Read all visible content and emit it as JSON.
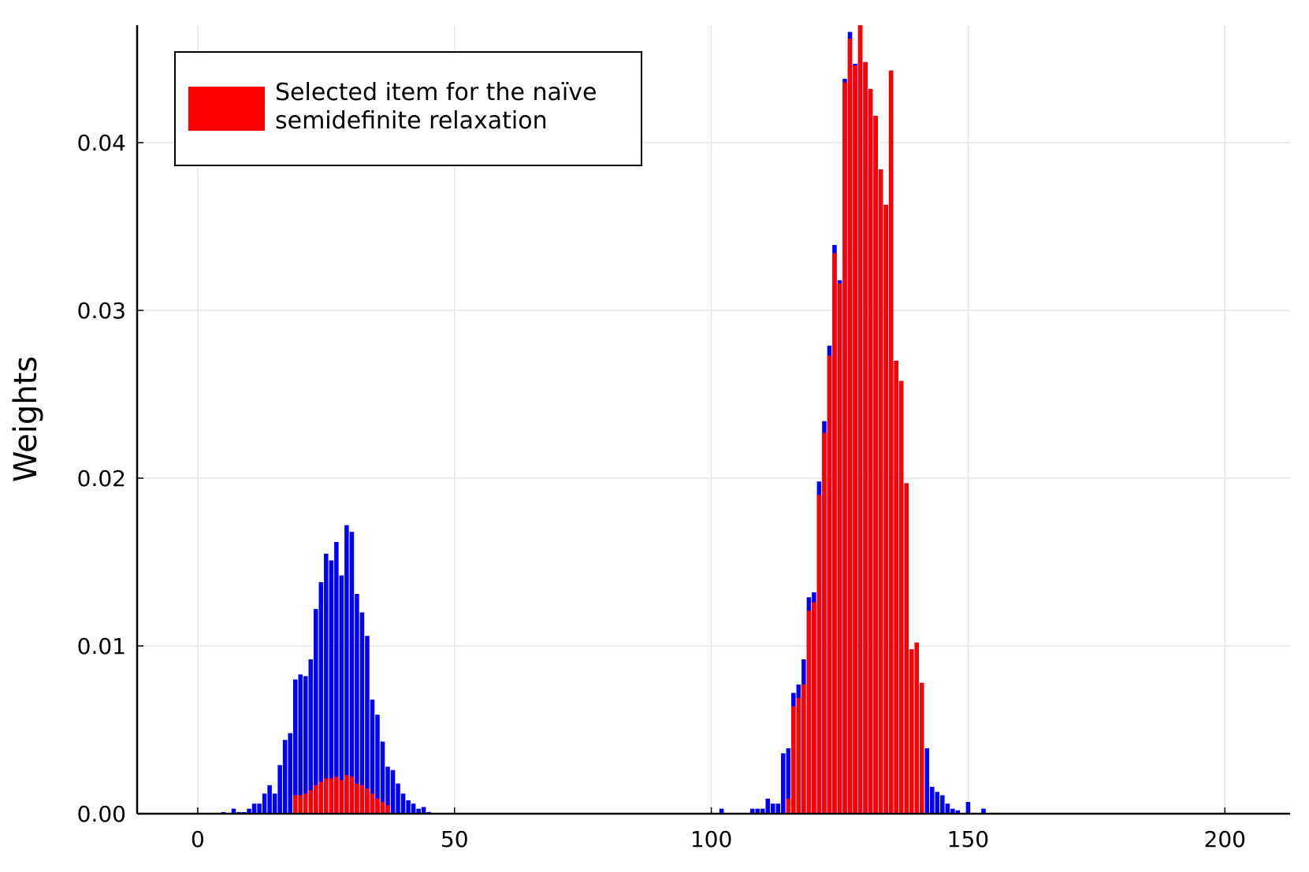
{
  "chart_data": {
    "type": "bar",
    "ylabel": "Weights",
    "xlim": [
      -11.8,
      212.7
    ],
    "ylim": [
      0,
      0.047
    ],
    "xticks": [
      0,
      50,
      100,
      150,
      200
    ],
    "yticks": [
      {
        "value": 0,
        "label": "0.00"
      },
      0.01,
      0.02,
      0.03,
      0.04
    ],
    "grid": true,
    "legend": "top-left",
    "series": [
      {
        "color": "#0000ff",
        "x": [
          5,
          7,
          8,
          9,
          10,
          11,
          12,
          13,
          14,
          15,
          16,
          17,
          18,
          19,
          20,
          21,
          22,
          23,
          24,
          25,
          26,
          27,
          28,
          29,
          30,
          31,
          32,
          33,
          34,
          35,
          36,
          37,
          38,
          39,
          40,
          41,
          42,
          43,
          44,
          45,
          102,
          108,
          109,
          110,
          111,
          112,
          113,
          114,
          115,
          116,
          117,
          118,
          119,
          120,
          121,
          122,
          123,
          124,
          125,
          126,
          127,
          128,
          129,
          130,
          131,
          132,
          133,
          134,
          135,
          136,
          137,
          138,
          139,
          140,
          141,
          142,
          143,
          144,
          145,
          146,
          147,
          148,
          150,
          153
        ],
        "values": [
          0.0001,
          0.0003,
          0.0001,
          0.0001,
          0.0003,
          0.0006,
          0.0006,
          0.0012,
          0.0017,
          0.0012,
          0.0029,
          0.0044,
          0.0048,
          0.008,
          0.0083,
          0.0082,
          0.0092,
          0.0122,
          0.0138,
          0.0155,
          0.0151,
          0.0162,
          0.0142,
          0.0172,
          0.0168,
          0.0131,
          0.012,
          0.0106,
          0.0068,
          0.0059,
          0.0043,
          0.0028,
          0.0026,
          0.0018,
          0.0012,
          0.0008,
          0.0006,
          0.0003,
          0.0004,
          0.0001,
          0.0003,
          0.0003,
          0.0003,
          0.0003,
          0.0009,
          0.0006,
          0.0006,
          0.0036,
          0.0039,
          0.0072,
          0.0077,
          0.0092,
          0.0129,
          0.0132,
          0.0198,
          0.0234,
          0.0279,
          0.0339,
          0.0318,
          0.0438,
          0.0466,
          0.0447,
          0.047,
          0.0448,
          0.0432,
          0.0416,
          0.0384,
          0.0363,
          0.0443,
          0.027,
          0.0258,
          0.0197,
          0.0098,
          0.0102,
          0.0078,
          0.0039,
          0.0016,
          0.0013,
          0.0011,
          0.0006,
          0.0003,
          0.0002,
          0.0007,
          0.0003
        ]
      },
      {
        "name": "Selected item for the naïve semidefinite relaxation",
        "color": "#ff0000",
        "x": [
          19,
          20,
          21,
          22,
          23,
          24,
          25,
          26,
          27,
          28,
          29,
          30,
          31,
          32,
          33,
          34,
          35,
          36,
          37,
          115,
          116,
          117,
          118,
          119,
          120,
          121,
          122,
          123,
          124,
          125,
          126,
          127,
          128,
          129,
          130,
          131,
          132,
          133,
          134,
          135,
          136,
          137,
          138,
          139,
          140,
          141
        ],
        "values": [
          0.0011,
          0.0011,
          0.0012,
          0.0014,
          0.0017,
          0.0019,
          0.0021,
          0.0021,
          0.0022,
          0.002,
          0.0023,
          0.0022,
          0.0018,
          0.0017,
          0.0015,
          0.0012,
          0.0009,
          0.0007,
          0.0005,
          0.0009,
          0.0064,
          0.0069,
          0.0077,
          0.0121,
          0.0126,
          0.019,
          0.0227,
          0.0273,
          0.0334,
          0.0316,
          0.0436,
          0.0462,
          0.0446,
          0.047,
          0.0448,
          0.0432,
          0.0416,
          0.0384,
          0.0363,
          0.0443,
          0.027,
          0.0258,
          0.0197,
          0.0098,
          0.0102,
          0.0078
        ]
      }
    ]
  }
}
